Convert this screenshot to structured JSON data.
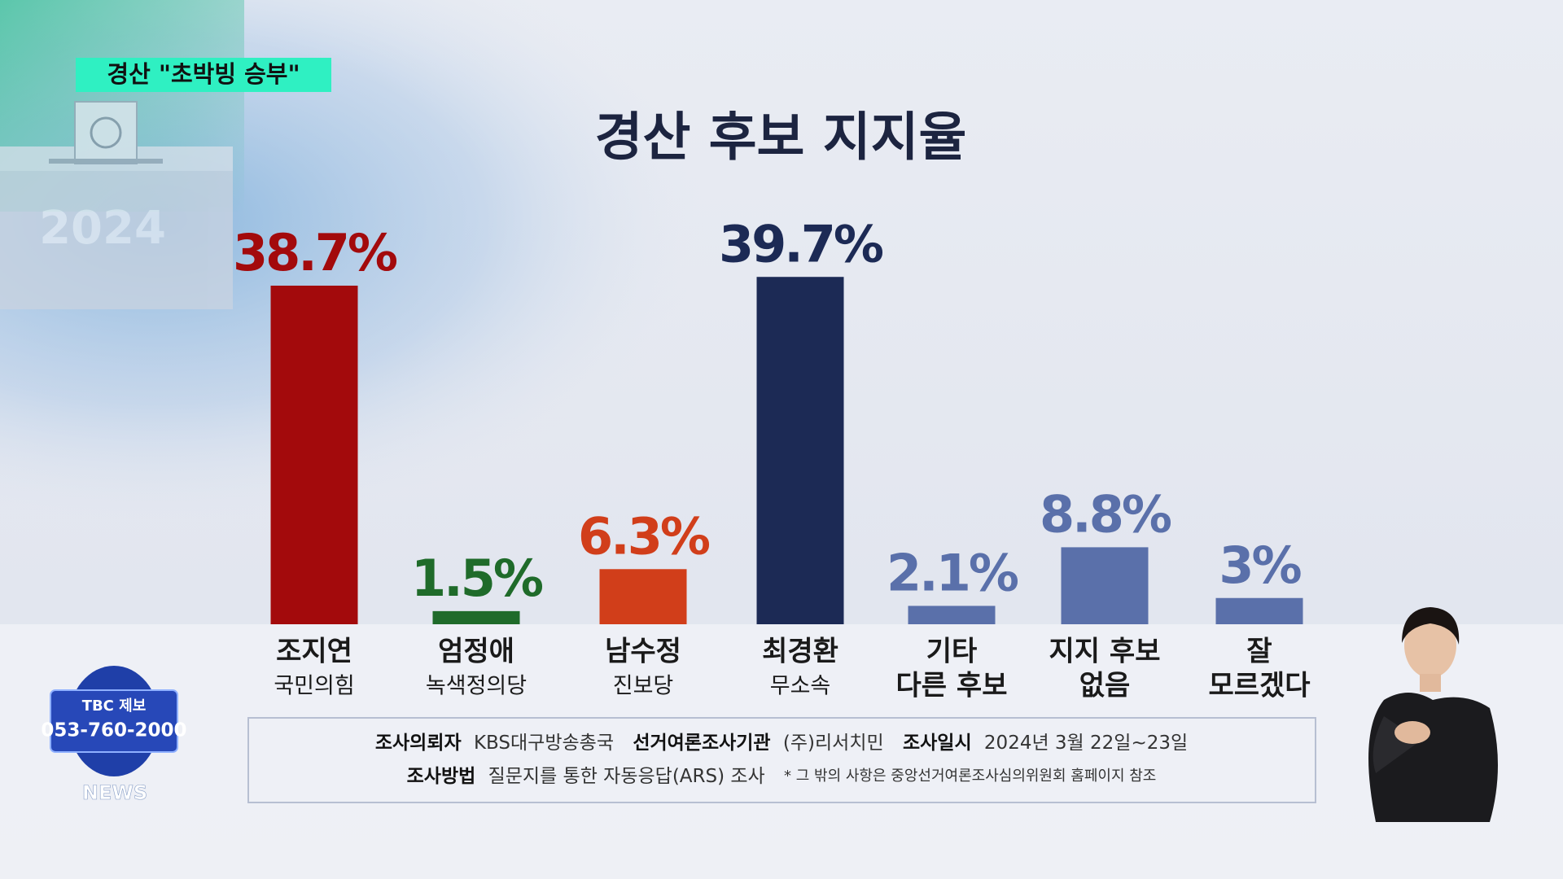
{
  "header_tag": "경산 \"초박빙 승부\"",
  "ballot_year": "2024",
  "tip_line": {
    "brand": "TBC 제보",
    "phone": "053-760-2000",
    "channel": "NEWS"
  },
  "survey_note": {
    "line1": [
      {
        "label": "조사의뢰자",
        "text": "KBS대구방송총국"
      },
      {
        "label": "선거여론조사기관",
        "text": "(주)리서치민"
      },
      {
        "label": "조사일시",
        "text": "2024년 3월 22일~23일"
      }
    ],
    "line2": [
      {
        "label": "조사방법",
        "text": "질문지를 통한 자동응답(ARS) 조사"
      }
    ],
    "remark": "* 그 밖의 사항은 중앙선거여론조사심의위원회 홈페이지 참조"
  },
  "chart_data": {
    "type": "bar",
    "title": "경산 후보 지지율",
    "categories": [
      "조지연",
      "엄정애",
      "남수정",
      "최경환",
      "기타",
      "지지 후보",
      "잘"
    ],
    "category_sublabels": [
      "국민의힘",
      "녹색정의당",
      "진보당",
      "무소속",
      "다른 후보",
      "없음",
      "모르겠다"
    ],
    "values": [
      38.7,
      1.5,
      6.3,
      39.7,
      2.1,
      8.8,
      3
    ],
    "value_labels": [
      "38.7%",
      "1.5%",
      "6.3%",
      "39.7%",
      "2.1%",
      "8.8%",
      "3%"
    ],
    "colors": [
      "#a30a0c",
      "#1f6b2a",
      "#d13e1a",
      "#1c2a55",
      "#5a70aa",
      "#5a70aa",
      "#5a70aa"
    ],
    "ylim": [
      0,
      40
    ]
  }
}
